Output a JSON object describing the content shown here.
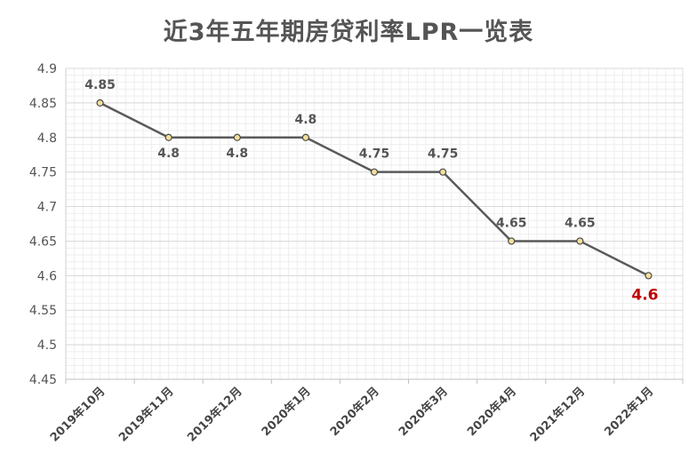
{
  "chart_data": {
    "type": "line",
    "title": "近3年五年期房贷利率LPR一览表",
    "xlabel": "",
    "ylabel": "",
    "categories": [
      "2019年10月",
      "2019年11月",
      "2019年12月",
      "2020年1月",
      "2020年2月",
      "2020年3月",
      "2020年4月",
      "2021年12月",
      "2022年1月"
    ],
    "series": [
      {
        "values": [
          4.85,
          4.8,
          4.8,
          4.8,
          4.75,
          4.75,
          4.65,
          4.65,
          4.6
        ]
      }
    ],
    "data_labels": [
      "4.85",
      "4.8",
      "4.8",
      "4.8",
      "4.75",
      "4.75",
      "4.65",
      "4.65",
      "4.6"
    ],
    "ylim": [
      4.45,
      4.9
    ],
    "yticks": [
      4.45,
      4.5,
      4.55,
      4.6,
      4.65,
      4.7,
      4.75,
      4.8,
      4.85,
      4.9
    ],
    "ytick_labels": [
      "4.45",
      "4.5",
      "4.55",
      "4.6",
      "4.65",
      "4.7",
      "4.75",
      "4.8",
      "4.85",
      "4.9"
    ],
    "grid": true,
    "legend": "none",
    "colors": {
      "line": "#5a5a5a",
      "marker_fill": "#f3df9a",
      "marker_stroke": "#4a4a4a",
      "label": "#555555",
      "highlight_label": "#c00000",
      "major_grid": "#d9d9d9",
      "minor_grid": "#eeeeee"
    }
  }
}
